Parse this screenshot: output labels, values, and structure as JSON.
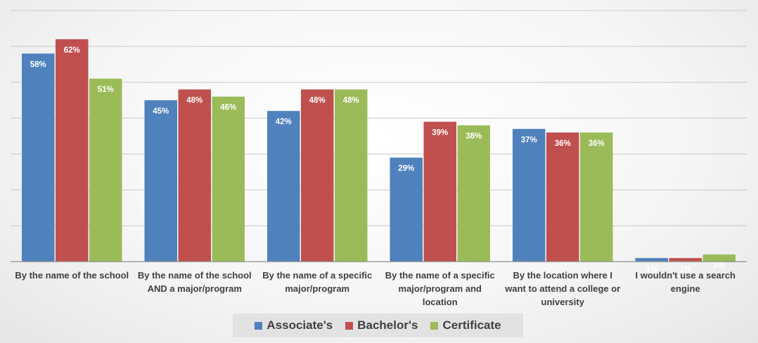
{
  "chart_data": {
    "type": "bar",
    "categories": [
      [
        "By the name of the school"
      ],
      [
        "By the name of the school",
        "AND a major/program"
      ],
      [
        "By the name of a specific",
        "major/program"
      ],
      [
        "By the name of a specific",
        "major/program and",
        "location"
      ],
      [
        "By the location where I",
        "want to attend a college or",
        "university"
      ],
      [
        "I wouldn't use a search",
        "engine"
      ]
    ],
    "series": [
      {
        "name": "Associate's",
        "color": "#4f81bd",
        "values": [
          58,
          45,
          42,
          29,
          37,
          1
        ]
      },
      {
        "name": "Bachelor's",
        "color": "#c0504d",
        "values": [
          62,
          48,
          48,
          39,
          36,
          1
        ]
      },
      {
        "name": "Certificate",
        "color": "#9bbb59",
        "values": [
          51,
          46,
          48,
          38,
          36,
          2
        ]
      }
    ],
    "value_suffix": "%",
    "ylim": [
      0,
      70
    ],
    "grid": true,
    "legend": "bottom",
    "title": "",
    "xlabel": "",
    "ylabel": ""
  }
}
